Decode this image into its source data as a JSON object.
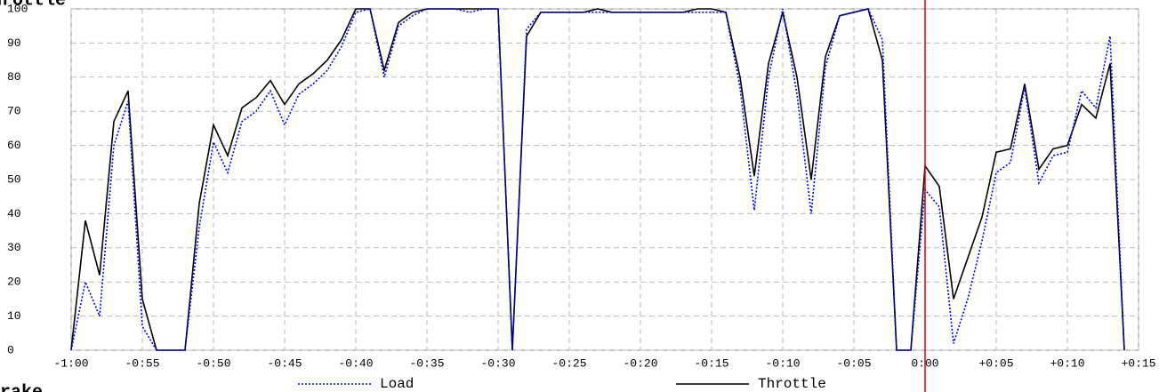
{
  "chart_data": {
    "type": "line",
    "title": "Throttle",
    "next_panel_title": "Brake",
    "x": [
      -60,
      -59,
      -58,
      -57,
      -56,
      -55,
      -54,
      -53,
      -52,
      -51,
      -50,
      -49,
      -48,
      -47,
      -46,
      -45,
      -44,
      -43,
      -42,
      -41,
      -40,
      -39,
      -38,
      -37,
      -36,
      -35,
      -34,
      -33,
      -32,
      -31,
      -30,
      -29,
      -28,
      -27,
      -26,
      -25,
      -24,
      -23,
      -22,
      -21,
      -20,
      -19,
      -18,
      -17,
      -16,
      -15,
      -14,
      -13,
      -12,
      -11,
      -10,
      -9,
      -8,
      -7,
      -6,
      -5,
      -4,
      -3,
      -2,
      -1,
      0,
      1,
      2,
      3,
      4,
      5,
      6,
      7,
      8,
      9,
      10,
      11,
      12,
      13,
      14
    ],
    "series": [
      {
        "name": "Throttle",
        "color": "#000000",
        "dash": "none",
        "values": [
          0,
          38,
          22,
          67,
          76,
          15,
          0,
          0,
          0,
          43,
          66,
          57,
          71,
          74,
          79,
          72,
          78,
          81,
          85,
          91,
          100,
          100,
          82,
          96,
          99,
          100,
          100,
          100,
          100,
          100,
          100,
          0,
          92,
          99,
          99,
          99,
          99,
          100,
          99,
          99,
          99,
          99,
          99,
          99,
          100,
          100,
          99,
          80,
          51,
          84,
          99,
          80,
          50,
          86,
          98,
          99,
          100,
          85,
          0,
          0,
          54,
          48,
          15,
          27,
          39,
          58,
          59,
          78,
          53,
          59,
          60,
          72,
          68,
          84,
          0
        ]
      },
      {
        "name": "Load",
        "color": "#0000ff",
        "dash": "2,2",
        "values": [
          0,
          20,
          10,
          60,
          73,
          7,
          0,
          0,
          0,
          36,
          61,
          52,
          67,
          70,
          76,
          66,
          75,
          78,
          82,
          89,
          99,
          100,
          80,
          95,
          98,
          100,
          100,
          100,
          99,
          100,
          100,
          0,
          94,
          99,
          99,
          99,
          99,
          99,
          99,
          99,
          99,
          99,
          99,
          99,
          99,
          99,
          99,
          77,
          41,
          80,
          100,
          75,
          40,
          83,
          98,
          99,
          100,
          91,
          0,
          0,
          47,
          42,
          2,
          15,
          32,
          52,
          55,
          77,
          49,
          57,
          58,
          76,
          71,
          92,
          0
        ]
      }
    ],
    "marker_x": 0,
    "marker_color": "#dd0000",
    "xlim": [
      -60,
      15
    ],
    "xticks": [
      {
        "value": -60,
        "label": "-1:00"
      },
      {
        "value": -55,
        "label": "-0:55"
      },
      {
        "value": -50,
        "label": "-0:50"
      },
      {
        "value": -45,
        "label": "-0:45"
      },
      {
        "value": -40,
        "label": "-0:40"
      },
      {
        "value": -35,
        "label": "-0:35"
      },
      {
        "value": -30,
        "label": "-0:30"
      },
      {
        "value": -25,
        "label": "-0:25"
      },
      {
        "value": -20,
        "label": "-0:20"
      },
      {
        "value": -15,
        "label": "-0:15"
      },
      {
        "value": -10,
        "label": "-0:10"
      },
      {
        "value": -5,
        "label": "-0:05"
      },
      {
        "value": 0,
        "label": "0:00"
      },
      {
        "value": 5,
        "label": "+0:05"
      },
      {
        "value": 10,
        "label": "+0:10"
      },
      {
        "value": 15,
        "label": "+0:15"
      }
    ],
    "ylim": [
      0,
      100
    ],
    "yticks": [
      0,
      10,
      20,
      30,
      40,
      50,
      60,
      70,
      80,
      90,
      100
    ],
    "grid": true
  }
}
